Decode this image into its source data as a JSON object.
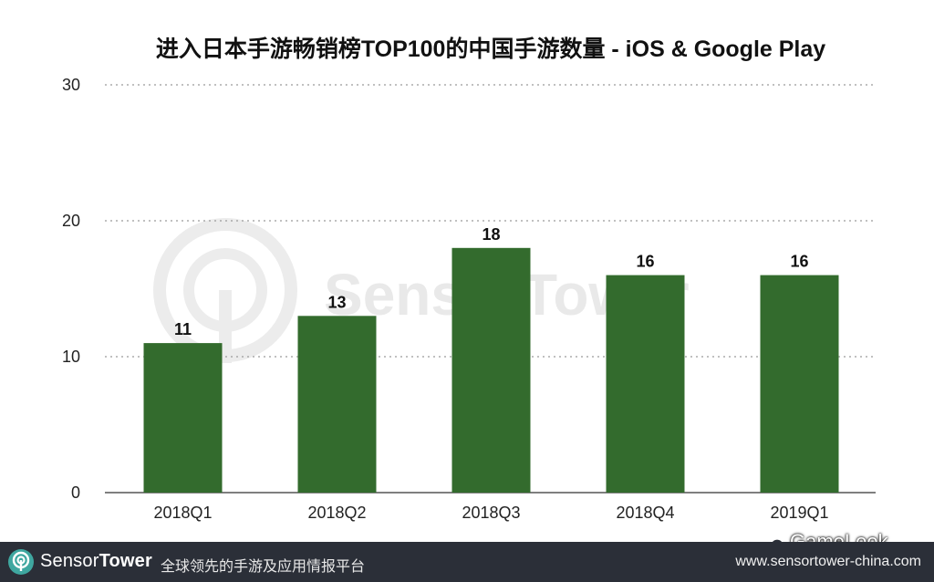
{
  "chart_data": {
    "type": "bar",
    "title": "进入日本手游畅销榜TOP100的中国手游数量 - iOS & Google Play",
    "categories": [
      "2018Q1",
      "2018Q2",
      "2018Q3",
      "2018Q4",
      "2019Q1"
    ],
    "values": [
      11,
      13,
      18,
      16,
      16
    ],
    "data_labels": [
      "11",
      "13",
      "18",
      "16",
      "16"
    ],
    "yticks": [
      "0",
      "10",
      "20",
      "30"
    ],
    "ylim": [
      0,
      30
    ],
    "xlabel": "",
    "ylabel": "",
    "grid": true,
    "bar_color": "#336b2d"
  },
  "watermark": {
    "brand": "SensorTower"
  },
  "footer": {
    "brand_part1": "Sensor",
    "brand_part2": "Tower",
    "slogan": "全球领先的手游及应用情报平台",
    "url": "www.sensortower-china.com"
  },
  "overlay_badge": {
    "label": "GameLook",
    "icon": "wechat-icon"
  }
}
